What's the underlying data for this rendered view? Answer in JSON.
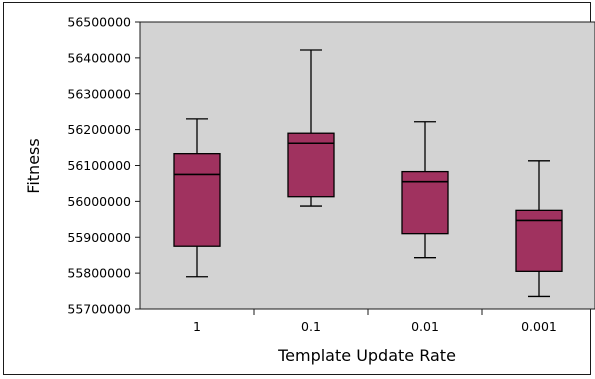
{
  "chart_data": {
    "type": "box",
    "xlabel": "Template Update Rate",
    "ylabel": "Fitness",
    "ylim": [
      55700000,
      56500000
    ],
    "yticks": [
      55700000,
      55800000,
      55900000,
      56000000,
      56100000,
      56200000,
      56300000,
      56400000,
      56500000
    ],
    "ytick_labels": [
      "55700000",
      "55800000",
      "55900000",
      "56000000",
      "56100000",
      "56200000",
      "56300000",
      "56400000",
      "56500000"
    ],
    "categories": [
      "1",
      "0.1",
      "0.01",
      "0.001"
    ],
    "boxes": [
      {
        "category": "1",
        "min": 55790000,
        "q1": 55875000,
        "median": 56075000,
        "q3": 56133000,
        "max": 56230000
      },
      {
        "category": "0.1",
        "min": 55987000,
        "q1": 56013000,
        "median": 56162000,
        "q3": 56190000,
        "max": 56422000
      },
      {
        "category": "0.01",
        "min": 55843000,
        "q1": 55910000,
        "median": 56055000,
        "q3": 56083000,
        "max": 56222000
      },
      {
        "category": "0.001",
        "min": 55735000,
        "q1": 55805000,
        "median": 55947000,
        "q3": 55975000,
        "max": 56113000
      }
    ],
    "box_color": "#a0325f",
    "plot_background": "#d3d3d3",
    "grid": false
  }
}
